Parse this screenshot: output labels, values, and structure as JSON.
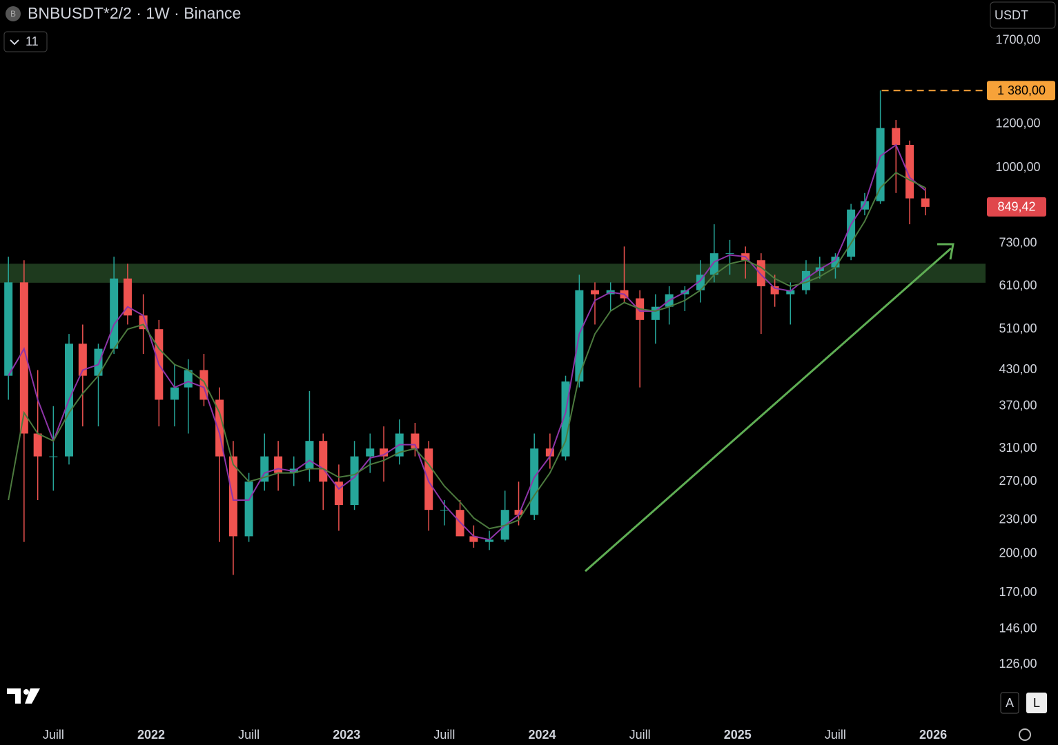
{
  "header": {
    "symbol_icon": "B",
    "symbol": "BNBUSDT*2/2 · 1W · Binance",
    "indicators_count": "11",
    "currency": "USDT",
    "scale_auto": "A",
    "scale_log": "L"
  },
  "chart_data": {
    "type": "candlestick",
    "log_scale": true,
    "x": [
      2021.27,
      2021.35,
      2021.42,
      2021.5,
      2021.58,
      2021.65,
      2021.73,
      2021.81,
      2021.88,
      2021.96,
      2022.04,
      2022.12,
      2022.19,
      2022.27,
      2022.35,
      2022.42,
      2022.5,
      2022.58,
      2022.65,
      2022.73,
      2022.81,
      2022.88,
      2022.96,
      2023.04,
      2023.12,
      2023.19,
      2023.27,
      2023.35,
      2023.42,
      2023.5,
      2023.58,
      2023.65,
      2023.73,
      2023.81,
      2023.88,
      2023.96,
      2024.04,
      2024.12,
      2024.19,
      2024.27,
      2024.35,
      2024.42,
      2024.5,
      2024.58,
      2024.65,
      2024.73,
      2024.81,
      2024.88,
      2024.96,
      2025.04,
      2025.12,
      2025.19,
      2025.27,
      2025.35,
      2025.42,
      2025.5,
      2025.58,
      2025.65,
      2025.73,
      2025.81,
      2025.88,
      2025.96
    ],
    "open": [
      420,
      620,
      330,
      300,
      300,
      480,
      420,
      470,
      630,
      540,
      510,
      380,
      400,
      430,
      380,
      300,
      215,
      270,
      300,
      280,
      285,
      320,
      270,
      245,
      300,
      310,
      300,
      330,
      310,
      240,
      240,
      215,
      210,
      212,
      240,
      235,
      310,
      300,
      410,
      600,
      590,
      600,
      580,
      530,
      560,
      590,
      600,
      640,
      700,
      700,
      680,
      610,
      590,
      600,
      650,
      660,
      690,
      840,
      870,
      1180,
      1100,
      880
    ],
    "high": [
      690,
      680,
      430,
      370,
      500,
      520,
      480,
      690,
      670,
      590,
      530,
      440,
      450,
      460,
      400,
      320,
      280,
      330,
      320,
      300,
      394,
      330,
      290,
      320,
      330,
      340,
      350,
      345,
      320,
      250,
      250,
      225,
      220,
      260,
      270,
      330,
      330,
      420,
      640,
      620,
      620,
      720,
      600,
      590,
      610,
      610,
      680,
      790,
      740,
      720,
      700,
      640,
      620,
      680,
      690,
      700,
      860,
      900,
      1380,
      1220,
      1120,
      920
    ],
    "low": [
      380,
      210,
      250,
      260,
      290,
      340,
      340,
      460,
      520,
      460,
      340,
      340,
      330,
      370,
      210,
      183,
      210,
      260,
      260,
      265,
      270,
      240,
      220,
      240,
      280,
      270,
      290,
      300,
      220,
      225,
      220,
      205,
      203,
      210,
      225,
      230,
      285,
      295,
      400,
      520,
      550,
      570,
      400,
      480,
      520,
      550,
      570,
      620,
      640,
      630,
      500,
      560,
      520,
      590,
      630,
      630,
      680,
      820,
      860,
      900,
      790,
      820
    ],
    "close": [
      620,
      330,
      300,
      300,
      480,
      420,
      470,
      630,
      540,
      510,
      380,
      400,
      430,
      380,
      300,
      215,
      270,
      300,
      280,
      285,
      320,
      270,
      245,
      300,
      310,
      300,
      330,
      310,
      240,
      240,
      215,
      210,
      212,
      240,
      235,
      310,
      300,
      410,
      600,
      590,
      600,
      580,
      530,
      560,
      590,
      600,
      640,
      700,
      700,
      680,
      610,
      590,
      600,
      650,
      660,
      690,
      840,
      870,
      1180,
      1100,
      880,
      849.42
    ],
    "up_color": "#26a69a",
    "down_color": "#ef5350",
    "overlays": [
      {
        "color": "#8e35a8",
        "values": [
          420,
          470,
          380,
          320,
          380,
          430,
          440,
          520,
          560,
          540,
          440,
          400,
          410,
          400,
          330,
          250,
          250,
          280,
          285,
          282,
          295,
          285,
          262,
          275,
          298,
          302,
          315,
          315,
          270,
          245,
          228,
          215,
          212,
          225,
          235,
          275,
          300,
          360,
          500,
          575,
          595,
          590,
          550,
          550,
          575,
          595,
          625,
          675,
          695,
          690,
          640,
          605,
          598,
          630,
          655,
          680,
          790,
          860,
          1050,
          1100,
          960,
          910
        ]
      },
      {
        "color": "#4c7a3e",
        "values": [
          250,
          360,
          330,
          320,
          360,
          390,
          420,
          470,
          510,
          520,
          470,
          440,
          430,
          410,
          360,
          290,
          270,
          275,
          280,
          280,
          285,
          285,
          275,
          278,
          290,
          295,
          305,
          310,
          290,
          265,
          248,
          232,
          222,
          225,
          230,
          255,
          280,
          320,
          420,
          500,
          550,
          570,
          555,
          550,
          560,
          575,
          600,
          640,
          670,
          680,
          660,
          630,
          610,
          620,
          635,
          660,
          730,
          800,
          920,
          980,
          950,
          920
        ]
      }
    ],
    "zone": {
      "from": 619,
      "to": 670,
      "color": "#1e3a1e"
    },
    "marked_level": {
      "value": 1380,
      "label": "1 380,00",
      "color": "#f7a239"
    },
    "last_price_label": "849,42",
    "last_price_color": "#e0474c",
    "ylim": [
      101,
      2013
    ],
    "yticks": [
      {
        "value": 126,
        "label": "126,00"
      },
      {
        "value": 146,
        "label": "146,00"
      },
      {
        "value": 170,
        "label": "170,00"
      },
      {
        "value": 200,
        "label": "200,00"
      },
      {
        "value": 230,
        "label": "230,00"
      },
      {
        "value": 270,
        "label": "270,00"
      },
      {
        "value": 310,
        "label": "310,00"
      },
      {
        "value": 370,
        "label": "370,00"
      },
      {
        "value": 430,
        "label": "430,00"
      },
      {
        "value": 510,
        "label": "510,00"
      },
      {
        "value": 610,
        "label": "610,00"
      },
      {
        "value": 730,
        "label": "730,00"
      },
      {
        "value": 1000,
        "label": "1000,00"
      },
      {
        "value": 1200,
        "label": "1200,00"
      },
      {
        "value": 1700,
        "label": "1700,00"
      }
    ],
    "xlim": [
      2021.227,
      2026.268
    ],
    "xticks": [
      {
        "value": 2021.5,
        "label": "Juill"
      },
      {
        "value": 2022,
        "label": "2022"
      },
      {
        "value": 2022.5,
        "label": "Juill"
      },
      {
        "value": 2023,
        "label": "2023"
      },
      {
        "value": 2023.5,
        "label": "Juill"
      },
      {
        "value": 2024,
        "label": "2024"
      },
      {
        "value": 2024.5,
        "label": "Juill"
      },
      {
        "value": 2025,
        "label": "2025"
      },
      {
        "value": 2025.5,
        "label": "Juill"
      },
      {
        "value": 2026,
        "label": "2026"
      }
    ]
  }
}
